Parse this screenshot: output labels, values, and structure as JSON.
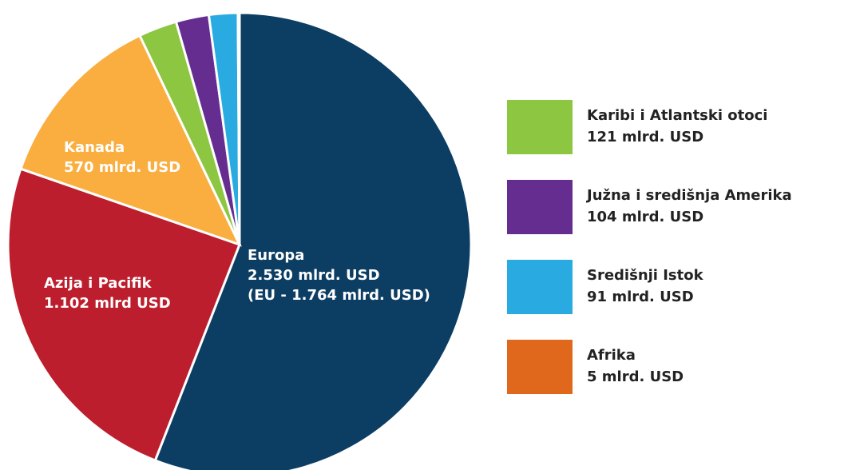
{
  "chart_data": {
    "type": "pie",
    "categories": [
      "Europa",
      "Azija i Pacifik",
      "Kanada",
      "Karibi i Atlantski otoci",
      "Južna i središnja Amerika",
      "Središnji Istok",
      "Afrika"
    ],
    "values": [
      2530,
      1102,
      570,
      121,
      104,
      91,
      5
    ],
    "value_labels": [
      "2.530 mlrd. USD",
      "1.102 mlrd USD",
      "570 mlrd. USD",
      "121 mlrd. USD",
      "104 mlrd. USD",
      "91 mlrd. USD",
      "5 mlrd. USD"
    ],
    "colors": [
      "#0c3d63",
      "#bd1e2d",
      "#f9ae3f",
      "#8dc641",
      "#662d91",
      "#29abe2",
      "#e0681d"
    ],
    "annotation": "(EU - 1.764 mlrd. USD)"
  }
}
